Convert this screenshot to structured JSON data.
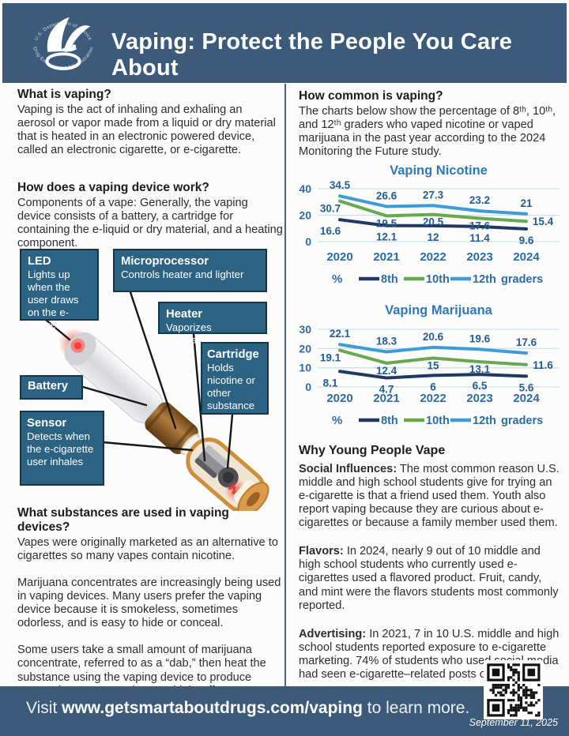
{
  "header": {
    "title": "Vaping: Protect the People You Care About",
    "logo_top_text": "U.S. Department of Justice",
    "logo_bottom_text": "Drug Enforcement Administration"
  },
  "left": {
    "s1_heading": "What is vaping?",
    "s1_body": "Vaping is the act of inhaling and exhaling an aerosol or vapor made from a liquid or dry material that is heated in an electronic powered device, called an electronic cigarette, or e-cigarette.",
    "s2_heading": "How does a vaping device work?",
    "s2_body": "Components of a vape: Generally, the vaping device consists of a battery, a cartridge for containing the e-liquid or dry material, and a heating component.",
    "diagram": {
      "callouts": [
        {
          "title": "LED",
          "body": "Lights up when the user draws on the e-cigarette"
        },
        {
          "title": "Microprocessor",
          "body": "Controls heater and lighter"
        },
        {
          "title": "Heater",
          "body": "Vaporizes substance"
        },
        {
          "title": "Cartridge",
          "body": "Holds nicotine or other substance"
        },
        {
          "title": "Battery",
          "body": ""
        },
        {
          "title": "Sensor",
          "body": "Detects when the e-cigarette user inhales"
        }
      ]
    },
    "s3_heading": "What substances are used in vaping devices?",
    "s3_paragraphs": [
      "Vapes were originally marketed as an alternative to cigarettes so many vapes contain nicotine.",
      "Marijuana concentrates are increasingly being used in vaping devices. Many users prefer the vaping device because it is smokeless, sometimes odorless, and is easy to hide or conceal.",
      "Some users take a small amount of marijuana concentrate, referred to as a “dab,” then heat the substance using the vaping device to produce vapors that ensure an instant “high” effect (“dabbing”)."
    ]
  },
  "right": {
    "heading": "How common is vaping?",
    "intro": "The charts below show the percentage of 8ᵗʰ, 10ᵗʰ, and 12ᵗʰ graders who vaped nicotine or vaped marijuana in the past year according to the 2024 Monitoring the Future study.",
    "why_heading": "Why Young People Vape",
    "why_items": [
      {
        "label": "Social Influences:",
        "text": " The most common reason U.S. middle and high school students give for trying an e-cigarette is that a friend used them. Youth also report vaping because they are curious about e-cigarettes or because a family member used them."
      },
      {
        "label": "Flavors:",
        "text": " In 2024, nearly 9 out of 10 middle and high school students who currently used e-cigarettes used a flavored product. Fruit, candy, and mint were the flavors students most commonly reported."
      },
      {
        "label": "Advertising:",
        "text": " In 2021, 7 in 10 U.S. middle and high school students reported exposure to e-cigarette marketing. 74% of students who used social media had seen e-cigarette–related posts or content."
      }
    ]
  },
  "chart_data": [
    {
      "type": "line",
      "title": "Vaping Nicotine",
      "x": [
        2020,
        2021,
        2022,
        2023,
        2024
      ],
      "series": [
        {
          "name": "8th",
          "color": "#1f3864",
          "values": [
            16.6,
            12.1,
            12,
            11.4,
            9.6
          ]
        },
        {
          "name": "10th",
          "color": "#6aa84f",
          "values": [
            30.7,
            19.5,
            20.5,
            17.6,
            15.4
          ]
        },
        {
          "name": "12th",
          "color": "#3d9bd9",
          "values": [
            34.5,
            26.6,
            27.3,
            23.2,
            21
          ]
        }
      ],
      "ylim": [
        0,
        40
      ],
      "yticks": [
        0,
        20,
        40
      ],
      "ylabel": "%",
      "grid": true,
      "legend_position": "bottom",
      "legend_prefix": "%",
      "legend_suffix": "graders"
    },
    {
      "type": "line",
      "title": "Vaping Marijuana",
      "x": [
        2020,
        2021,
        2022,
        2023,
        2024
      ],
      "series": [
        {
          "name": "8th",
          "color": "#1f3864",
          "values": [
            8.1,
            4.7,
            6,
            6.5,
            5.6
          ]
        },
        {
          "name": "10th",
          "color": "#6aa84f",
          "values": [
            19.1,
            12.4,
            15,
            13.1,
            11.6
          ]
        },
        {
          "name": "12th",
          "color": "#3d9bd9",
          "values": [
            22.1,
            18.3,
            20.6,
            19.6,
            17.6
          ]
        }
      ],
      "ylim": [
        0,
        30
      ],
      "yticks": [
        0,
        10,
        20,
        30
      ],
      "ylabel": "%",
      "grid": true,
      "legend_position": "bottom",
      "legend_prefix": "%",
      "legend_suffix": "graders"
    }
  ],
  "footer": {
    "visit_prefix": "Visit ",
    "visit_link": "www.getsmartaboutdrugs.com/vaping",
    "visit_suffix": " to learn more.",
    "date": "September 11, 2025"
  },
  "icons": {
    "logo": "dea-eagle-logo",
    "qr": "qr-code"
  },
  "colors": {
    "header_bar": "#3c5a7a",
    "callout_box": "#2c6282",
    "series_8th": "#1f3864",
    "series_10th": "#6aa84f",
    "series_12th": "#3d9bd9",
    "chart_text": "#2c6ca6"
  }
}
